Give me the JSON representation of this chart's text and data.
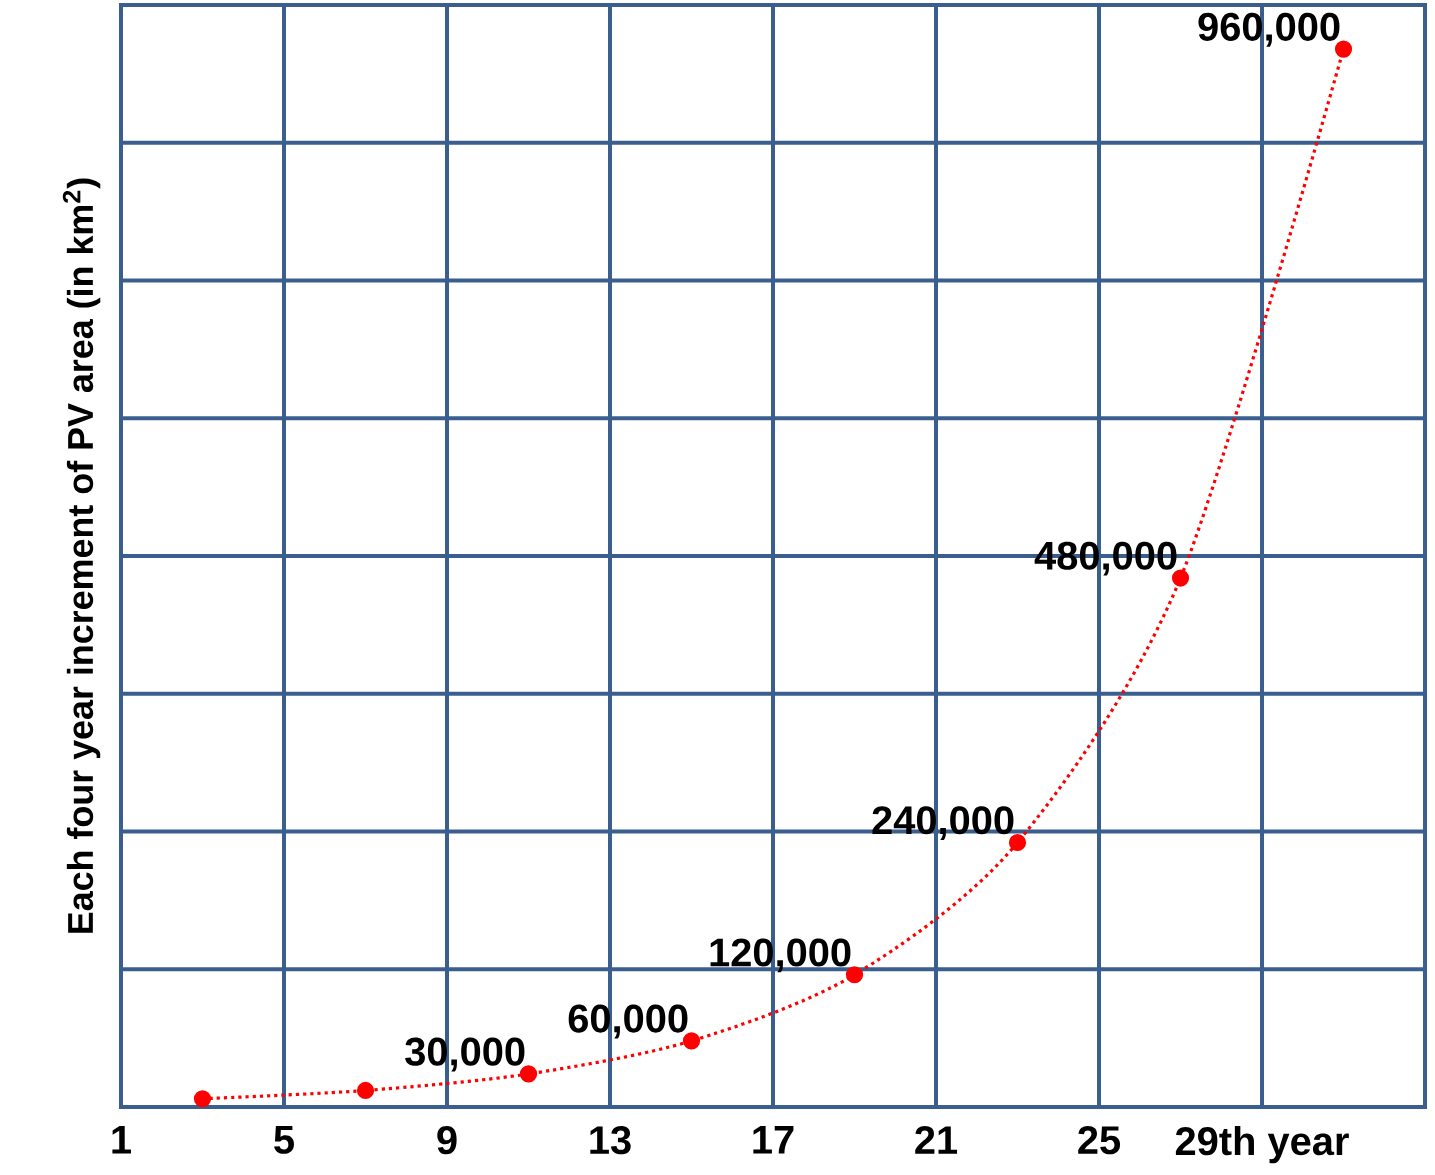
{
  "chart_data": {
    "type": "line",
    "ylabel": "Each four year increment of PV area (in km$^{2}$)",
    "x": [
      3,
      7,
      11,
      15,
      19,
      23,
      27,
      31
    ],
    "series": [
      {
        "color": "#ff0000",
        "values": [
          7500,
          15000,
          30000,
          60000,
          120000,
          240000,
          480000,
          960000
        ],
        "value_labels": [
          null,
          null,
          "30,000",
          "60,000",
          "120,000",
          "240,000",
          "480,000",
          "960,000"
        ]
      }
    ],
    "xlim": [
      1,
      33
    ],
    "ylim": [
      0,
      1000000
    ],
    "xticks": [
      1,
      5,
      9,
      13,
      17,
      21,
      25,
      {
        "value": 29,
        "label": "29th year"
      }
    ],
    "yticks": [
      {
        "value": 0,
        "label": null
      },
      {
        "value": 125000,
        "label": null
      },
      {
        "value": 250000,
        "label": null
      },
      {
        "value": 375000,
        "label": null
      },
      {
        "value": 500000,
        "label": null
      },
      {
        "value": 625000,
        "label": null
      },
      {
        "value": 750000,
        "label": null
      },
      {
        "value": 875000,
        "label": null
      },
      {
        "value": 1000000,
        "label": null
      }
    ],
    "tick_labels": "x",
    "grid": true,
    "marker": "circle",
    "line_style": "dotted"
  }
}
